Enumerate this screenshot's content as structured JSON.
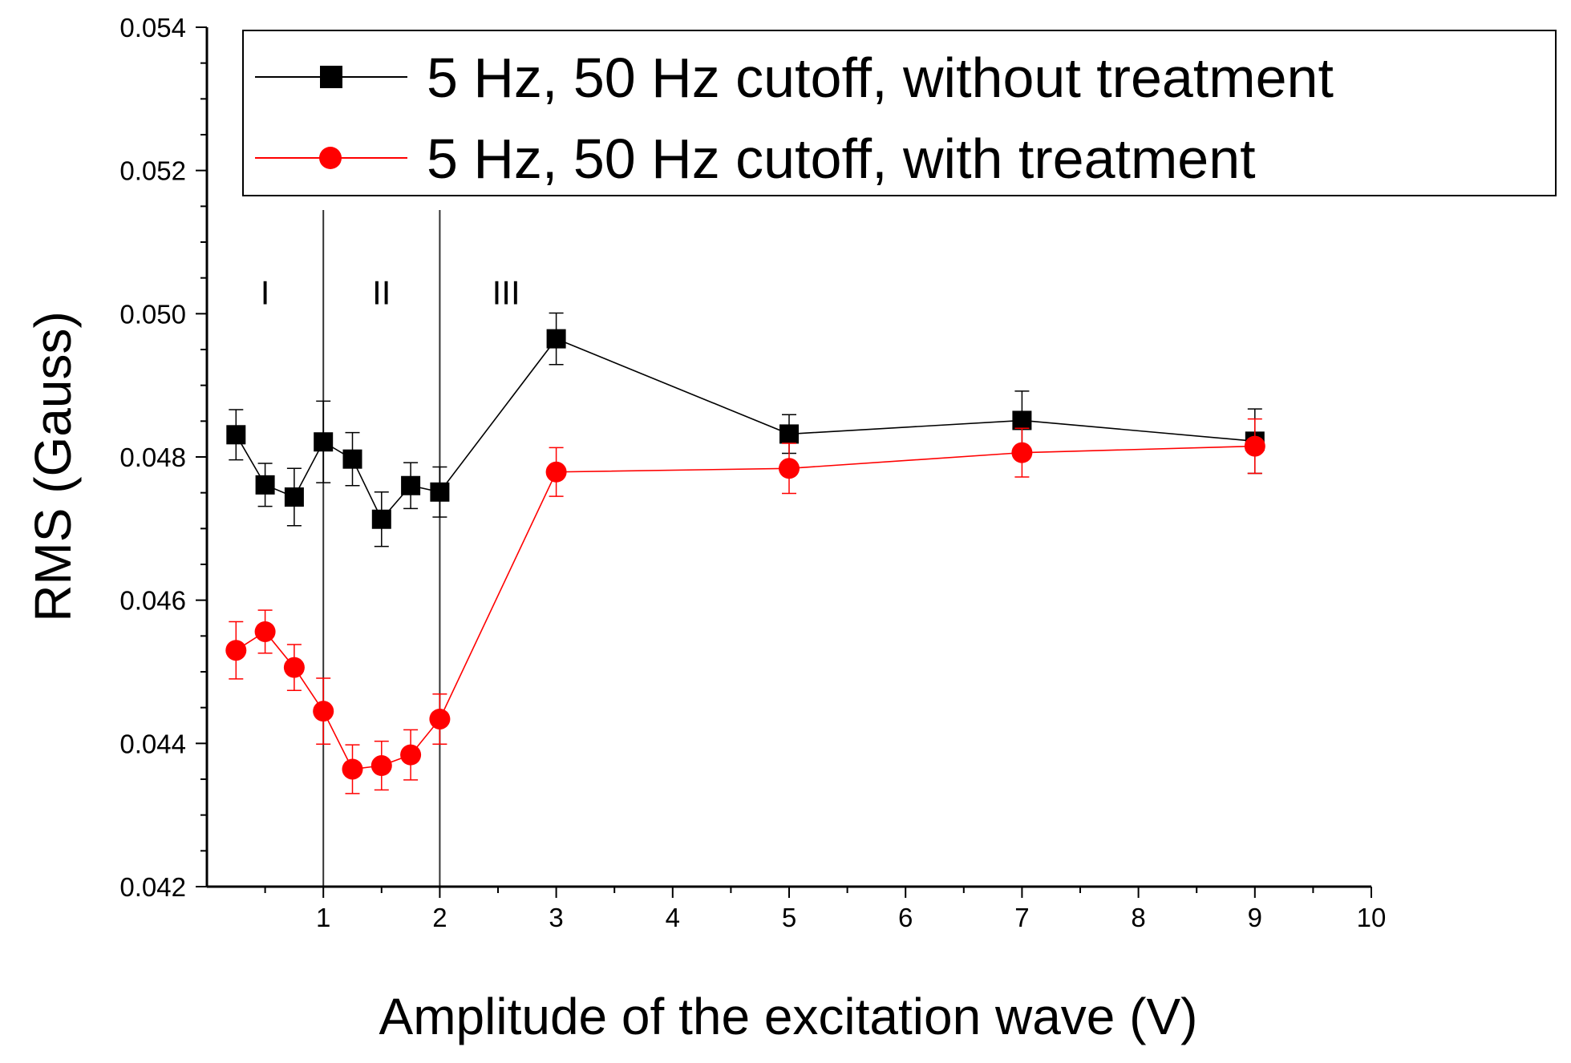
{
  "chart_data": {
    "type": "line",
    "title": "",
    "xlabel": "Amplitude of the excitation wave (V)",
    "ylabel": "RMS (Gauss)",
    "xlim": [
      0,
      10
    ],
    "ylim": [
      0.042,
      0.054
    ],
    "x_ticks": [
      1,
      2,
      3,
      4,
      5,
      6,
      7,
      8,
      9,
      10
    ],
    "x_tick_labels": [
      "1",
      "2",
      "3",
      "4",
      "5",
      "6",
      "7",
      "8",
      "9",
      "10"
    ],
    "y_ticks": [
      0.042,
      0.044,
      0.046,
      0.048,
      0.05,
      0.052,
      0.054
    ],
    "y_tick_labels": [
      "0.042",
      "0.044",
      "0.046",
      "0.048",
      "0.050",
      "0.052",
      "0.054"
    ],
    "grid": false,
    "legend_position": "top-right",
    "vertical_lines": [
      1,
      2
    ],
    "regions": [
      {
        "label": "I",
        "x": 0.5,
        "y": 0.0503
      },
      {
        "label": "II",
        "x": 1.5,
        "y": 0.0503
      },
      {
        "label": "III",
        "x": 2.57,
        "y": 0.0503
      }
    ],
    "series": [
      {
        "name": "5 Hz, 50 Hz cutoff, without treatment",
        "color": "#000000",
        "marker": "square",
        "x": [
          0.25,
          0.5,
          0.75,
          1,
          1.25,
          1.5,
          1.75,
          2,
          3,
          5,
          7,
          9
        ],
        "y": [
          0.04831,
          0.04761,
          0.04744,
          0.04821,
          0.04797,
          0.04713,
          0.0476,
          0.04751,
          0.04965,
          0.04832,
          0.04851,
          0.04822
        ],
        "err": [
          0.00035,
          0.0003,
          0.0004,
          0.00057,
          0.00037,
          0.00038,
          0.00032,
          0.00035,
          0.00036,
          0.00027,
          0.00041,
          0.00045
        ]
      },
      {
        "name": "5 Hz, 50 Hz cutoff, with treatment",
        "color": "#ff0000",
        "marker": "circle",
        "x": [
          0.25,
          0.5,
          0.75,
          1,
          1.25,
          1.5,
          1.75,
          2,
          3,
          5,
          7,
          9
        ],
        "y": [
          0.0453,
          0.04556,
          0.04506,
          0.04445,
          0.04364,
          0.04369,
          0.04384,
          0.04434,
          0.04779,
          0.04784,
          0.04806,
          0.04815
        ],
        "err": [
          0.0004,
          0.0003,
          0.00032,
          0.00046,
          0.00034,
          0.00034,
          0.00035,
          0.00035,
          0.00034,
          0.00035,
          0.00034,
          0.00038
        ]
      }
    ]
  }
}
